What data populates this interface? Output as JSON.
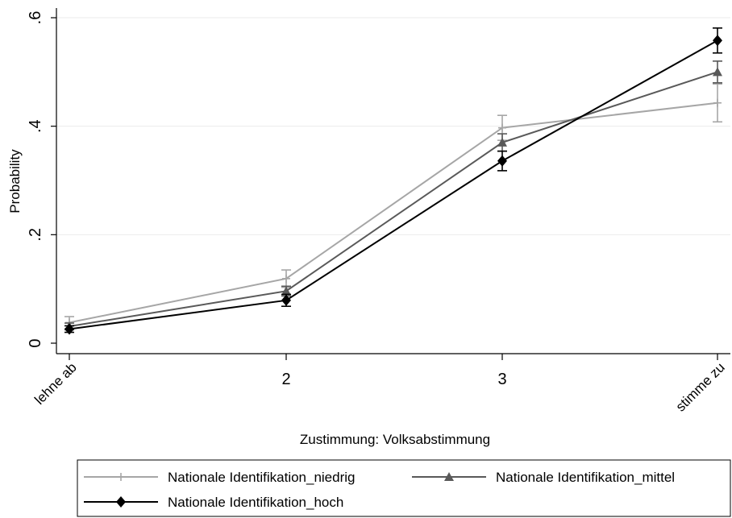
{
  "chart_data": {
    "type": "line",
    "xlabel": "Zustimmung: Volksabstimmung",
    "ylabel": "Probability",
    "categories": [
      "lehne ab",
      "2",
      "3",
      "stimme zu"
    ],
    "ylim": [
      0,
      0.6
    ],
    "yticks": [
      0,
      0.2,
      0.4,
      0.6
    ],
    "ytick_labels": [
      "0",
      ".2",
      ".4",
      ".6"
    ],
    "grid": true,
    "legend_position": "bottom",
    "series": [
      {
        "name": "Nationale Identifikation_niedrig",
        "marker": "plus",
        "color": "#a6a6a6",
        "values": [
          0.038,
          0.119,
          0.397,
          0.443
        ],
        "ci_low": [
          0.027,
          0.103,
          0.374,
          0.408
        ],
        "ci_high": [
          0.049,
          0.135,
          0.42,
          0.478
        ]
      },
      {
        "name": "Nationale Identifikation_mittel",
        "marker": "triangle",
        "color": "#595959",
        "values": [
          0.031,
          0.096,
          0.37,
          0.5
        ],
        "ci_low": [
          0.025,
          0.087,
          0.354,
          0.48
        ],
        "ci_high": [
          0.037,
          0.105,
          0.386,
          0.52
        ]
      },
      {
        "name": "Nationale Identifikation_hoch",
        "marker": "diamond",
        "color": "#000000",
        "values": [
          0.026,
          0.079,
          0.336,
          0.558
        ],
        "ci_low": [
          0.02,
          0.068,
          0.318,
          0.535
        ],
        "ci_high": [
          0.032,
          0.09,
          0.354,
          0.581
        ]
      }
    ]
  }
}
